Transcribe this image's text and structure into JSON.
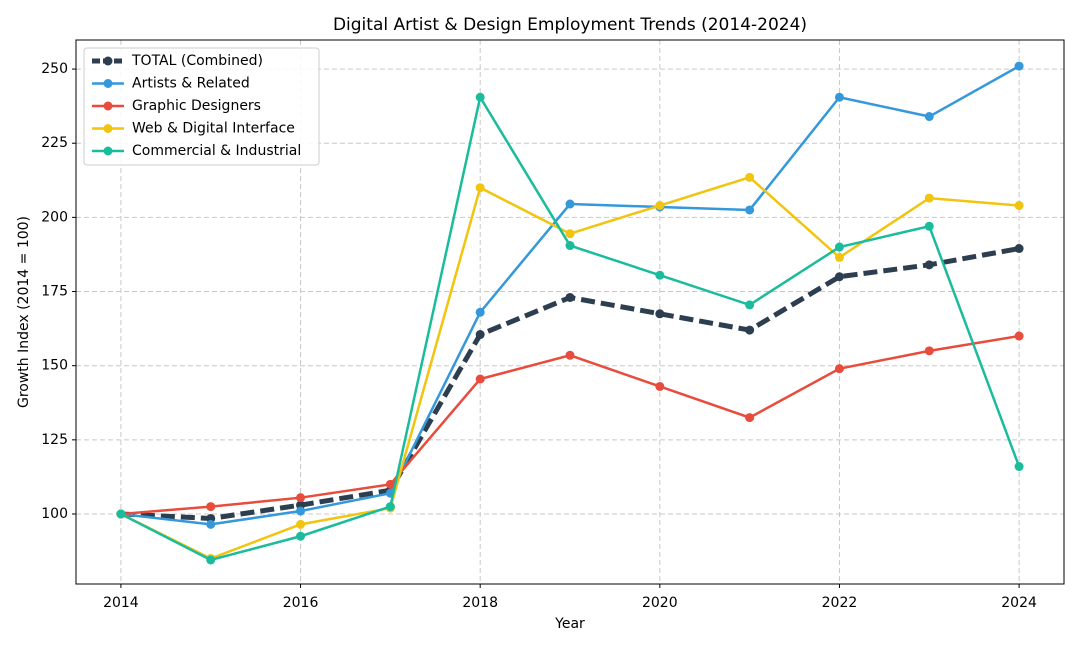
{
  "chart_data": {
    "type": "line",
    "title": "Digital Artist & Design Employment Trends (2014-2024)",
    "x_label": "Year",
    "y_label": "Growth Index (2014 = 100)",
    "x": [
      2014,
      2015,
      2016,
      2017,
      2018,
      2019,
      2020,
      2021,
      2022,
      2023,
      2024
    ],
    "xlim": [
      2013.5,
      2024.5
    ],
    "xticks": [
      2014,
      2016,
      2018,
      2020,
      2022,
      2024
    ],
    "ylim": [
      76.4,
      259.8
    ],
    "yticks": [
      100,
      125,
      150,
      175,
      200,
      225,
      250
    ],
    "grid": true,
    "legend": "upper-left",
    "series": [
      {
        "name": "TOTAL (Combined)",
        "color": "#2c3e50",
        "linestyle": "dashed",
        "values": [
          100,
          98.5,
          103,
          108,
          160.5,
          173,
          167.5,
          162,
          180,
          184,
          189.5
        ]
      },
      {
        "name": "Artists & Related",
        "color": "#3498db",
        "linestyle": "solid",
        "values": [
          100,
          96.5,
          101,
          107,
          168,
          204.5,
          203.5,
          202.5,
          240.5,
          234,
          251
        ]
      },
      {
        "name": "Graphic Designers",
        "color": "#e74c3c",
        "linestyle": "solid",
        "values": [
          100,
          102.5,
          105.5,
          110,
          145.5,
          153.5,
          143,
          132.5,
          149,
          155,
          160
        ]
      },
      {
        "name": "Web & Digital Interface",
        "color": "#f1c40f",
        "linestyle": "solid",
        "values": [
          100,
          85,
          96.5,
          102,
          210,
          194.5,
          204,
          213.5,
          186.5,
          206.5,
          204
        ]
      },
      {
        "name": "Commercial & Industrial",
        "color": "#1abc9c",
        "linestyle": "solid",
        "values": [
          100,
          84.5,
          92.5,
          102.5,
          240.5,
          190.5,
          180.5,
          170.5,
          190,
          197,
          116
        ]
      }
    ]
  }
}
